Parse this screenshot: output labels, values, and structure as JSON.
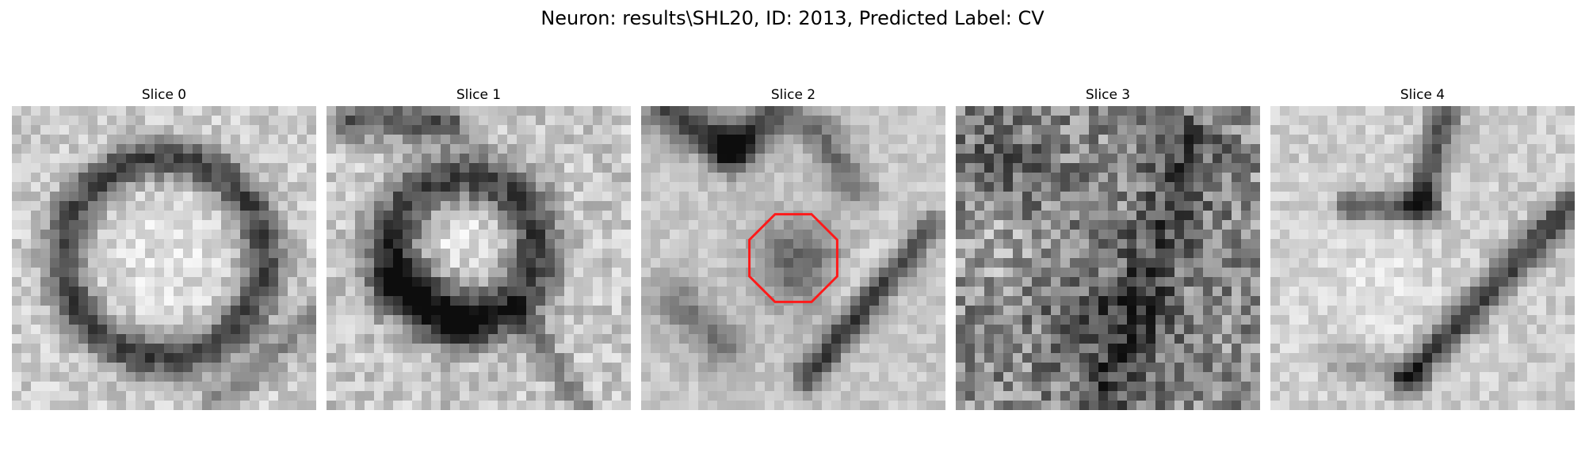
{
  "figure": {
    "title": "Neuron: results\\SHL20, ID: 2013, Predicted Label: CV"
  },
  "slices": [
    {
      "title": "Slice 0"
    },
    {
      "title": "Slice 1"
    },
    {
      "title": "Slice 2",
      "has_contour": true,
      "contour_color": "#ff1a1a"
    },
    {
      "title": "Slice 3"
    },
    {
      "title": "Slice 4"
    }
  ],
  "colors": {
    "background": "#ffffff",
    "text": "#000000",
    "contour": "#ff1a1a"
  }
}
